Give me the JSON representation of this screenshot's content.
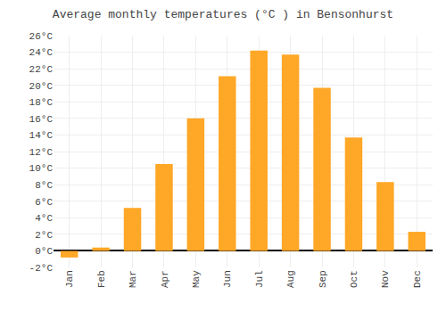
{
  "chart_data": {
    "type": "bar",
    "title": "Average monthly temperatures (°C ) in Bensonhurst",
    "categories": [
      "Jan",
      "Feb",
      "Mar",
      "Apr",
      "May",
      "Jun",
      "Jul",
      "Aug",
      "Sep",
      "Oct",
      "Nov",
      "Dec"
    ],
    "values": [
      -0.8,
      0.4,
      5.2,
      10.5,
      16.0,
      21.1,
      24.2,
      23.7,
      19.7,
      13.7,
      8.3,
      2.3
    ],
    "color": "#FFA726",
    "ylim": [
      -2,
      26
    ],
    "yticks": [
      {
        "value": -2,
        "label": "-2°C"
      },
      {
        "value": 0,
        "label": "0°C"
      },
      {
        "value": 2,
        "label": "2°C"
      },
      {
        "value": 4,
        "label": "4°C"
      },
      {
        "value": 6,
        "label": "6°C"
      },
      {
        "value": 8,
        "label": "8°C"
      },
      {
        "value": 10,
        "label": "10°C"
      },
      {
        "value": 12,
        "label": "12°C"
      },
      {
        "value": 14,
        "label": "14°C"
      },
      {
        "value": 16,
        "label": "16°C"
      },
      {
        "value": 18,
        "label": "18°C"
      },
      {
        "value": 20,
        "label": "20°C"
      },
      {
        "value": 22,
        "label": "22°C"
      },
      {
        "value": 24,
        "label": "24°C"
      },
      {
        "value": 26,
        "label": "26°C"
      }
    ],
    "grid": true
  }
}
